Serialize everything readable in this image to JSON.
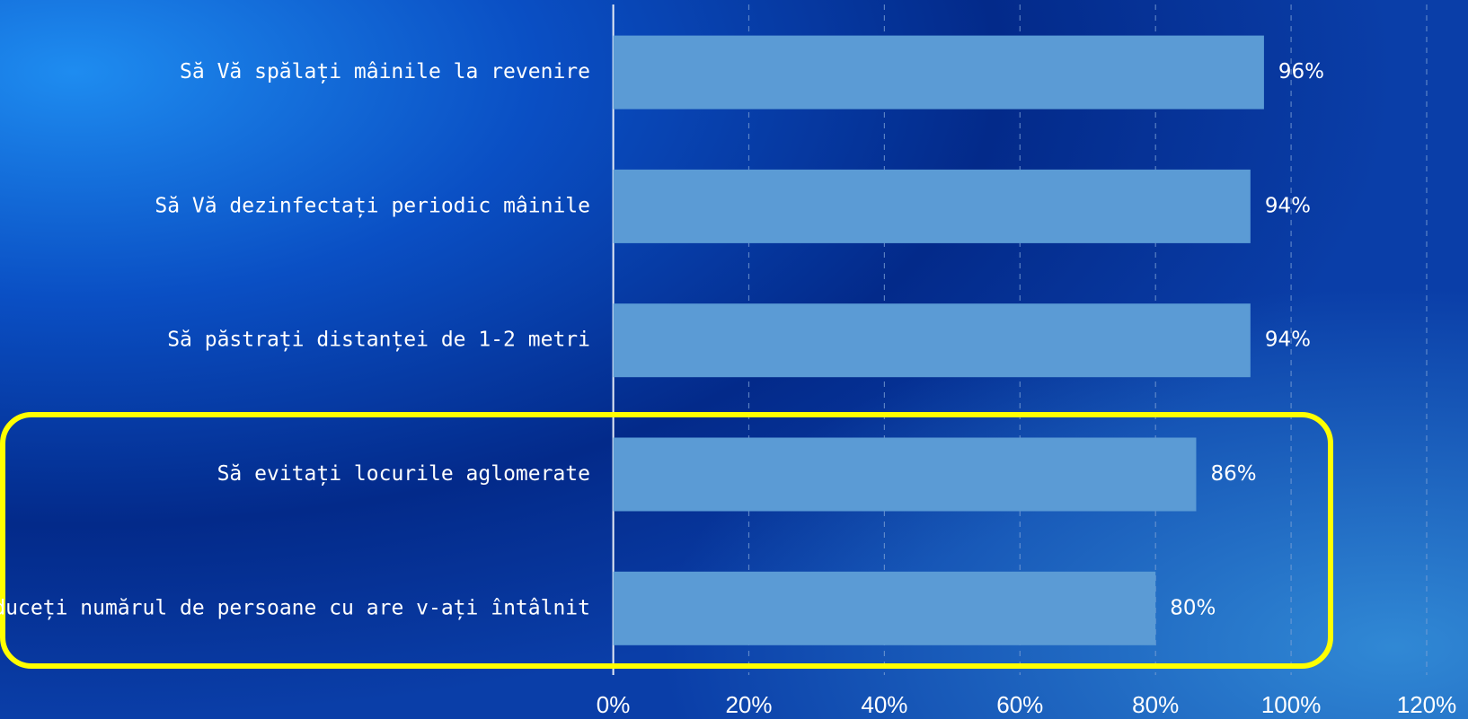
{
  "chart_data": {
    "type": "hbar",
    "categories": [
      "Să Vă spălați mâinile la revenire",
      "Să Vă dezinfectați periodic mâinile",
      "Să păstrați distanței de 1-2 metri",
      "Să evitați locurile aglomerate",
      "Să reduceți numărul de persoane cu are v-ați întâlnit"
    ],
    "values": [
      96,
      94,
      94,
      86,
      80
    ],
    "value_labels": [
      "96%",
      "94%",
      "94%",
      "86%",
      "80%"
    ],
    "color": "#5b9bd5",
    "xlim": [
      0,
      120
    ],
    "xticks": [
      {
        "value": 0,
        "label": "0%"
      },
      {
        "value": 20,
        "label": "20%"
      },
      {
        "value": 40,
        "label": "40%"
      },
      {
        "value": 60,
        "label": "60%"
      },
      {
        "value": 80,
        "label": "80%"
      },
      {
        "value": 100,
        "label": "100%"
      },
      {
        "value": 120,
        "label": "120%"
      }
    ],
    "grid": true
  }
}
